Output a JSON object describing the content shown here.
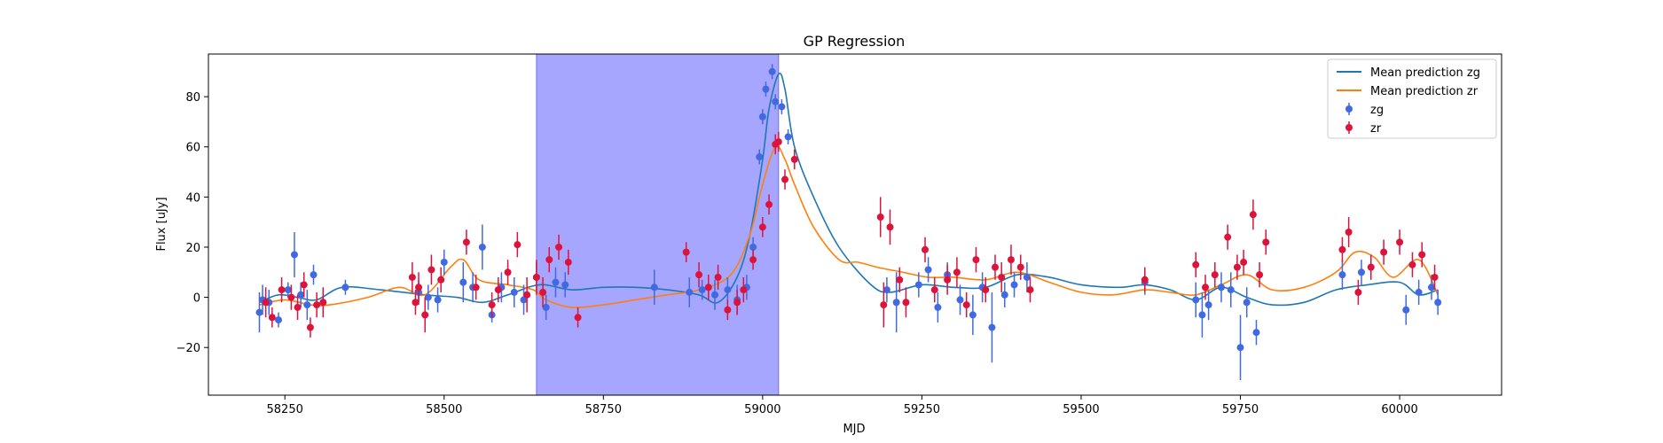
{
  "chart_data": {
    "type": "scatter",
    "title": "GP Regression",
    "xlabel": "MJD",
    "ylabel": "Flux [uJy]",
    "xlim": [
      58130,
      60160
    ],
    "ylim": [
      -39,
      97
    ],
    "xticks": [
      58250,
      58500,
      58750,
      59000,
      59250,
      59500,
      59750,
      60000
    ],
    "yticks": [
      -20,
      0,
      20,
      40,
      60,
      80
    ],
    "grid": false,
    "legend": "top-right",
    "shaded_region": {
      "x0": 58645,
      "x1": 59025,
      "color": "#8080ff"
    },
    "colors": {
      "mean_zg": "#1f77b4",
      "mean_zr": "#ff7f0e",
      "zg": "#4169e1",
      "zr": "#dc143c"
    },
    "lines": [
      {
        "name": "Mean prediction zg",
        "color": "#1f77b4",
        "points": [
          [
            58210,
            -2
          ],
          [
            58240,
            1
          ],
          [
            58270,
            0
          ],
          [
            58300,
            -1
          ],
          [
            58340,
            4
          ],
          [
            58400,
            3
          ],
          [
            58470,
            1
          ],
          [
            58520,
            0
          ],
          [
            58560,
            -2
          ],
          [
            58600,
            1
          ],
          [
            58650,
            5
          ],
          [
            58700,
            3
          ],
          [
            58750,
            4
          ],
          [
            58800,
            4
          ],
          [
            58850,
            3
          ],
          [
            58900,
            1
          ],
          [
            58930,
            -2
          ],
          [
            58960,
            8
          ],
          [
            58980,
            25
          ],
          [
            59000,
            55
          ],
          [
            59010,
            75
          ],
          [
            59025,
            89
          ],
          [
            59035,
            83
          ],
          [
            59050,
            60
          ],
          [
            59080,
            40
          ],
          [
            59120,
            20
          ],
          [
            59170,
            5
          ],
          [
            59200,
            2
          ],
          [
            59250,
            5
          ],
          [
            59300,
            4
          ],
          [
            59350,
            4
          ],
          [
            59400,
            9
          ],
          [
            59450,
            8
          ],
          [
            59500,
            5
          ],
          [
            59560,
            4
          ],
          [
            59600,
            5
          ],
          [
            59640,
            3
          ],
          [
            59680,
            -1
          ],
          [
            59720,
            4
          ],
          [
            59760,
            0
          ],
          [
            59800,
            -3
          ],
          [
            59850,
            -2
          ],
          [
            59900,
            3
          ],
          [
            59950,
            5
          ],
          [
            60000,
            6
          ],
          [
            60030,
            1
          ],
          [
            60060,
            3
          ]
        ]
      },
      {
        "name": "Mean prediction zr",
        "color": "#ff7f0e",
        "points": [
          [
            58210,
            -3
          ],
          [
            58250,
            -1
          ],
          [
            58290,
            -3
          ],
          [
            58320,
            -3
          ],
          [
            58380,
            0
          ],
          [
            58430,
            4
          ],
          [
            58470,
            1
          ],
          [
            58510,
            12
          ],
          [
            58530,
            15
          ],
          [
            58555,
            7
          ],
          [
            58600,
            5
          ],
          [
            58640,
            3
          ],
          [
            58660,
            -1
          ],
          [
            58700,
            -4
          ],
          [
            58750,
            -3
          ],
          [
            58800,
            -1
          ],
          [
            58850,
            1
          ],
          [
            58900,
            3
          ],
          [
            58950,
            9
          ],
          [
            58980,
            25
          ],
          [
            59000,
            45
          ],
          [
            59020,
            60
          ],
          [
            59035,
            55
          ],
          [
            59050,
            45
          ],
          [
            59080,
            28
          ],
          [
            59120,
            15
          ],
          [
            59150,
            14
          ],
          [
            59180,
            12
          ],
          [
            59220,
            10
          ],
          [
            59260,
            8
          ],
          [
            59300,
            8
          ],
          [
            59350,
            7
          ],
          [
            59400,
            10
          ],
          [
            59450,
            6
          ],
          [
            59500,
            2
          ],
          [
            59550,
            1
          ],
          [
            59600,
            3
          ],
          [
            59640,
            2
          ],
          [
            59680,
            1
          ],
          [
            59720,
            5
          ],
          [
            59760,
            9
          ],
          [
            59800,
            3
          ],
          [
            59850,
            4
          ],
          [
            59900,
            10
          ],
          [
            59930,
            18
          ],
          [
            59960,
            16
          ],
          [
            59990,
            8
          ],
          [
            60030,
            15
          ],
          [
            60060,
            1
          ]
        ]
      }
    ],
    "series": [
      {
        "name": "zg",
        "color": "#4169e1",
        "marker": "o",
        "x": [
          58210,
          58215,
          58225,
          58240,
          58255,
          58265,
          58275,
          58285,
          58295,
          58345,
          58460,
          58475,
          58490,
          58500,
          58530,
          58545,
          58560,
          58575,
          58590,
          58610,
          58625,
          58645,
          58660,
          58675,
          58690,
          58830,
          58885,
          58905,
          58925,
          58945,
          58960,
          58975,
          58985,
          58995,
          59000,
          59005,
          59015,
          59020,
          59030,
          59040,
          59195,
          59210,
          59245,
          59260,
          59275,
          59290,
          59310,
          59330,
          59345,
          59360,
          59380,
          59395,
          59415,
          59600,
          59680,
          59690,
          59700,
          59720,
          59735,
          59750,
          59760,
          59775,
          59910,
          59940,
          60010,
          60030,
          60050,
          60060
        ],
        "y": [
          -6,
          -1,
          -2,
          -9,
          3,
          17,
          1,
          -3,
          9,
          4,
          2,
          0,
          -1,
          14,
          6,
          4,
          20,
          -7,
          4,
          2,
          -1,
          8,
          -4,
          6,
          5,
          4,
          2,
          3,
          1,
          3,
          -1,
          4,
          20,
          56,
          72,
          83,
          90,
          78,
          76,
          64,
          3,
          -2,
          5,
          11,
          -4,
          9,
          -1,
          -7,
          4,
          -12,
          1,
          5,
          8,
          6,
          -1,
          -7,
          -3,
          4,
          3,
          -20,
          -2,
          -14,
          9,
          10,
          -5,
          2,
          4,
          -2
        ],
        "err": [
          8,
          6,
          5,
          3,
          3,
          9,
          5,
          6,
          4,
          3,
          5,
          5,
          5,
          5,
          8,
          6,
          9,
          3,
          6,
          6,
          6,
          6,
          5,
          6,
          5,
          7,
          6,
          4,
          6,
          5,
          6,
          5,
          4,
          3,
          3,
          3,
          3,
          3,
          3,
          3,
          5,
          12,
          5,
          5,
          6,
          5,
          6,
          8,
          6,
          14,
          5,
          5,
          6,
          5,
          7,
          9,
          6,
          6,
          7,
          13,
          6,
          5,
          6,
          5,
          6,
          5,
          5,
          5
        ]
      },
      {
        "name": "zr",
        "color": "#dc143c",
        "marker": "o",
        "x": [
          58220,
          58230,
          58245,
          58260,
          58270,
          58280,
          58290,
          58300,
          58310,
          58450,
          58455,
          58460,
          58470,
          58480,
          58495,
          58535,
          58550,
          58575,
          58585,
          58600,
          58615,
          58630,
          58645,
          58655,
          58665,
          58680,
          58695,
          58710,
          58880,
          58900,
          58915,
          58930,
          58945,
          58960,
          58970,
          58985,
          59000,
          59010,
          59020,
          59025,
          59035,
          59050,
          59185,
          59190,
          59200,
          59215,
          59225,
          59255,
          59270,
          59290,
          59305,
          59320,
          59335,
          59350,
          59365,
          59375,
          59390,
          59405,
          59420,
          59600,
          59680,
          59695,
          59710,
          59730,
          59745,
          59755,
          59770,
          59780,
          59790,
          59910,
          59920,
          59935,
          59955,
          59975,
          60000,
          60020,
          60035,
          60055
        ],
        "y": [
          -2,
          -8,
          3,
          0,
          -4,
          5,
          -12,
          -3,
          -2,
          8,
          -2,
          4,
          -7,
          11,
          7,
          22,
          4,
          -3,
          3,
          10,
          21,
          1,
          8,
          2,
          15,
          20,
          14,
          -8,
          18,
          9,
          4,
          8,
          -5,
          -2,
          3,
          15,
          28,
          37,
          61,
          62,
          47,
          55,
          32,
          -3,
          28,
          7,
          -2,
          19,
          3,
          7,
          10,
          -3,
          15,
          3,
          12,
          8,
          15,
          12,
          3,
          7,
          13,
          4,
          9,
          24,
          12,
          14,
          33,
          9,
          22,
          19,
          26,
          2,
          12,
          18,
          22,
          13,
          17,
          8
        ],
        "err": [
          6,
          4,
          5,
          5,
          5,
          5,
          4,
          5,
          6,
          6,
          5,
          6,
          7,
          6,
          5,
          5,
          5,
          5,
          5,
          5,
          5,
          7,
          7,
          6,
          5,
          5,
          5,
          4,
          4,
          5,
          5,
          5,
          4,
          5,
          5,
          4,
          4,
          4,
          4,
          4,
          4,
          4,
          8,
          9,
          7,
          5,
          6,
          5,
          5,
          6,
          6,
          5,
          5,
          5,
          5,
          6,
          6,
          5,
          5,
          5,
          5,
          5,
          5,
          5,
          5,
          5,
          6,
          5,
          5,
          5,
          6,
          5,
          5,
          5,
          5,
          5,
          5,
          5
        ]
      }
    ]
  }
}
